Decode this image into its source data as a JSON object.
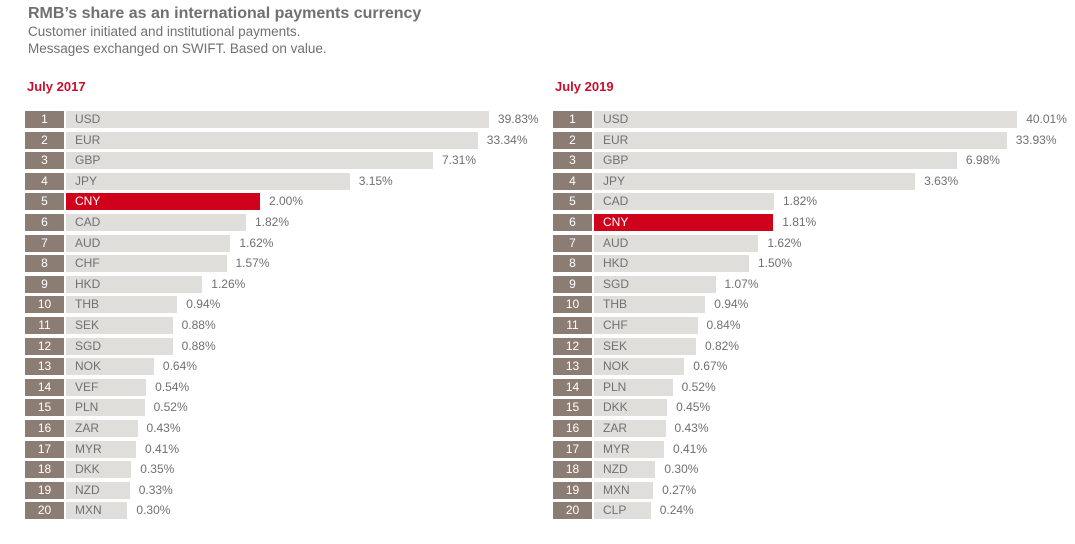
{
  "header": {
    "title": "RMB’s share as an international payments currency",
    "subtitle1": "Customer initiated and institutional payments.",
    "subtitle2": "Messages exchanged on SWIFT. Based on value."
  },
  "colors": {
    "bar": "#e0deda",
    "highlight": "#d0021b",
    "rank": "#8b7d74",
    "panel_title": "#c8102e"
  },
  "chart_data": [
    {
      "type": "bar",
      "title": "July 2017",
      "orientation": "horizontal",
      "highlight": "CNY",
      "ranks": [
        "1",
        "2",
        "3",
        "4",
        "5",
        "6",
        "7",
        "8",
        "9",
        "10",
        "11",
        "12",
        "13",
        "14",
        "15",
        "16",
        "17",
        "18",
        "19",
        "20"
      ],
      "categories": [
        "USD",
        "EUR",
        "GBP",
        "JPY",
        "CNY",
        "CAD",
        "AUD",
        "CHF",
        "HKD",
        "THB",
        "SEK",
        "SGD",
        "NOK",
        "VEF",
        "PLN",
        "ZAR",
        "MYR",
        "DKK",
        "NZD",
        "MXN"
      ],
      "values": [
        39.83,
        33.34,
        7.31,
        3.15,
        2.0,
        1.82,
        1.62,
        1.57,
        1.26,
        0.94,
        0.88,
        0.88,
        0.64,
        0.54,
        0.52,
        0.43,
        0.41,
        0.35,
        0.33,
        0.3
      ],
      "labels": [
        "39.83%",
        "33.34%",
        "7.31%",
        "3.15%",
        "2.00%",
        "1.82%",
        "1.62%",
        "1.57%",
        "1.26%",
        "0.94%",
        "0.88%",
        "0.88%",
        "0.64%",
        "0.54%",
        "0.52%",
        "0.43%",
        "0.41%",
        "0.35%",
        "0.33%",
        "0.30%"
      ]
    },
    {
      "type": "bar",
      "title": "July 2019",
      "orientation": "horizontal",
      "highlight": "CNY",
      "ranks": [
        "1",
        "2",
        "3",
        "4",
        "5",
        "6",
        "7",
        "8",
        "9",
        "10",
        "11",
        "12",
        "13",
        "14",
        "15",
        "16",
        "17",
        "18",
        "19",
        "20"
      ],
      "categories": [
        "USD",
        "EUR",
        "GBP",
        "JPY",
        "CAD",
        "CNY",
        "AUD",
        "HKD",
        "SGD",
        "THB",
        "CHF",
        "SEK",
        "NOK",
        "PLN",
        "DKK",
        "ZAR",
        "MYR",
        "NZD",
        "MXN",
        "CLP"
      ],
      "values": [
        40.01,
        33.93,
        6.98,
        3.63,
        1.82,
        1.81,
        1.62,
        1.5,
        1.07,
        0.94,
        0.84,
        0.82,
        0.67,
        0.52,
        0.45,
        0.43,
        0.41,
        0.3,
        0.27,
        0.24
      ],
      "labels": [
        "40.01%",
        "33.93%",
        "6.98%",
        "3.63%",
        "1.82%",
        "1.81%",
        "1.62%",
        "1.50%",
        "1.07%",
        "0.94%",
        "0.84%",
        "0.82%",
        "0.67%",
        "0.52%",
        "0.45%",
        "0.43%",
        "0.41%",
        "0.30%",
        "0.27%",
        "0.24%"
      ]
    }
  ]
}
